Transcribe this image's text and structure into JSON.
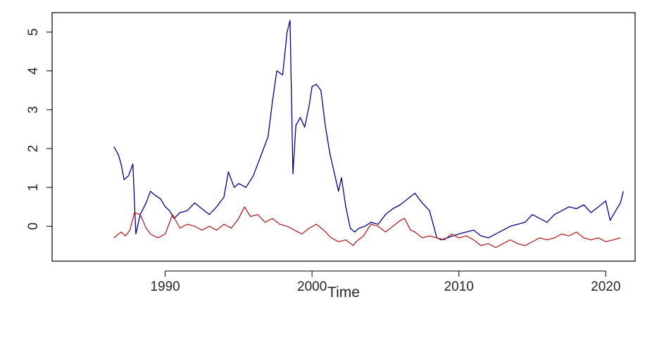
{
  "chart_data": {
    "type": "line",
    "title": "",
    "xlabel": "Time",
    "ylabel": "",
    "xlim": [
      1982.3,
      2022.0
    ],
    "ylim": [
      -0.9,
      5.5
    ],
    "x_ticks": [
      1990,
      2000,
      2010,
      2020
    ],
    "y_ticks": [
      0,
      1,
      2,
      3,
      4,
      5
    ],
    "grid": false,
    "legend": "none",
    "series": [
      {
        "color": "#00008b",
        "x": [
          1986.5,
          1986.8,
          1987.0,
          1987.2,
          1987.5,
          1987.8,
          1988.0,
          1988.3,
          1988.7,
          1989.0,
          1989.3,
          1989.7,
          1990.0,
          1990.3,
          1990.6,
          1991.0,
          1991.5,
          1992.0,
          1992.5,
          1993.0,
          1993.5,
          1994.0,
          1994.3,
          1994.7,
          1995.0,
          1995.5,
          1996.0,
          1996.5,
          1997.0,
          1997.3,
          1997.6,
          1998.0,
          1998.3,
          1998.5,
          1998.7,
          1998.9,
          1999.2,
          1999.5,
          1999.8,
          2000.0,
          2000.3,
          2000.6,
          2000.9,
          2001.2,
          2001.5,
          2001.8,
          2002.0,
          2002.3,
          2002.6,
          2002.9,
          2003.2,
          2003.6,
          2004.0,
          2004.5,
          2005.0,
          2005.5,
          2006.0,
          2006.5,
          2007.0,
          2007.5,
          2008.0,
          2008.5,
          2008.8,
          2009.2,
          2009.6,
          2010.0,
          2010.5,
          2011.0,
          2011.5,
          2012.0,
          2012.5,
          2013.0,
          2013.5,
          2014.0,
          2014.5,
          2015.0,
          2015.5,
          2016.0,
          2016.5,
          2017.0,
          2017.5,
          2018.0,
          2018.5,
          2019.0,
          2019.5,
          2020.0,
          2020.3,
          2020.6,
          2021.0,
          2021.2
        ],
        "y": [
          2.05,
          1.85,
          1.6,
          1.2,
          1.3,
          1.6,
          -0.2,
          0.3,
          0.6,
          0.9,
          0.8,
          0.7,
          0.5,
          0.4,
          0.2,
          0.35,
          0.4,
          0.6,
          0.45,
          0.3,
          0.5,
          0.75,
          1.4,
          1.0,
          1.1,
          1.0,
          1.3,
          1.8,
          2.3,
          3.2,
          4.0,
          3.9,
          5.0,
          5.3,
          1.35,
          2.6,
          2.8,
          2.55,
          3.1,
          3.6,
          3.65,
          3.5,
          2.6,
          1.9,
          1.4,
          0.9,
          1.25,
          0.5,
          -0.05,
          -0.15,
          -0.05,
          0.0,
          0.1,
          0.05,
          0.3,
          0.45,
          0.55,
          0.7,
          0.85,
          0.6,
          0.4,
          -0.3,
          -0.35,
          -0.3,
          -0.25,
          -0.2,
          -0.15,
          -0.1,
          -0.25,
          -0.3,
          -0.2,
          -0.1,
          0.0,
          0.05,
          0.1,
          0.3,
          0.2,
          0.1,
          0.3,
          0.4,
          0.5,
          0.45,
          0.55,
          0.35,
          0.5,
          0.65,
          0.15,
          0.35,
          0.6,
          0.9
        ]
      },
      {
        "color": "#b22222",
        "x": [
          1986.5,
          1987.0,
          1987.3,
          1987.6,
          1987.9,
          1988.3,
          1988.7,
          1989.0,
          1989.5,
          1990.0,
          1990.5,
          1991.0,
          1991.5,
          1992.0,
          1992.5,
          1993.0,
          1993.5,
          1994.0,
          1994.5,
          1995.0,
          1995.4,
          1995.8,
          1996.3,
          1996.8,
          1997.3,
          1997.8,
          1998.3,
          1998.8,
          1999.3,
          1999.8,
          2000.3,
          2000.8,
          2001.3,
          2001.8,
          2002.3,
          2002.8,
          2003.0,
          2003.5,
          2004.0,
          2004.5,
          2005.0,
          2005.5,
          2006.0,
          2006.3,
          2006.7,
          2007.0,
          2007.5,
          2008.0,
          2008.5,
          2009.0,
          2009.5,
          2010.0,
          2010.5,
          2011.0,
          2011.5,
          2012.0,
          2012.5,
          2013.0,
          2013.5,
          2014.0,
          2014.5,
          2015.0,
          2015.5,
          2016.0,
          2016.5,
          2017.0,
          2017.5,
          2018.0,
          2018.5,
          2019.0,
          2019.5,
          2020.0,
          2020.5,
          2021.0
        ],
        "y": [
          -0.3,
          -0.15,
          -0.25,
          -0.1,
          0.35,
          0.3,
          -0.05,
          -0.2,
          -0.3,
          -0.2,
          0.3,
          -0.05,
          0.05,
          0.0,
          -0.1,
          0.0,
          -0.1,
          0.05,
          -0.05,
          0.2,
          0.5,
          0.25,
          0.3,
          0.1,
          0.2,
          0.05,
          0.0,
          -0.1,
          -0.2,
          -0.05,
          0.05,
          -0.1,
          -0.3,
          -0.4,
          -0.35,
          -0.5,
          -0.4,
          -0.25,
          0.05,
          0.0,
          -0.15,
          0.0,
          0.15,
          0.2,
          -0.1,
          -0.15,
          -0.3,
          -0.25,
          -0.3,
          -0.35,
          -0.2,
          -0.3,
          -0.25,
          -0.35,
          -0.5,
          -0.45,
          -0.55,
          -0.45,
          -0.35,
          -0.45,
          -0.5,
          -0.4,
          -0.3,
          -0.35,
          -0.3,
          -0.2,
          -0.25,
          -0.15,
          -0.3,
          -0.35,
          -0.3,
          -0.4,
          -0.35,
          -0.3
        ]
      }
    ]
  }
}
